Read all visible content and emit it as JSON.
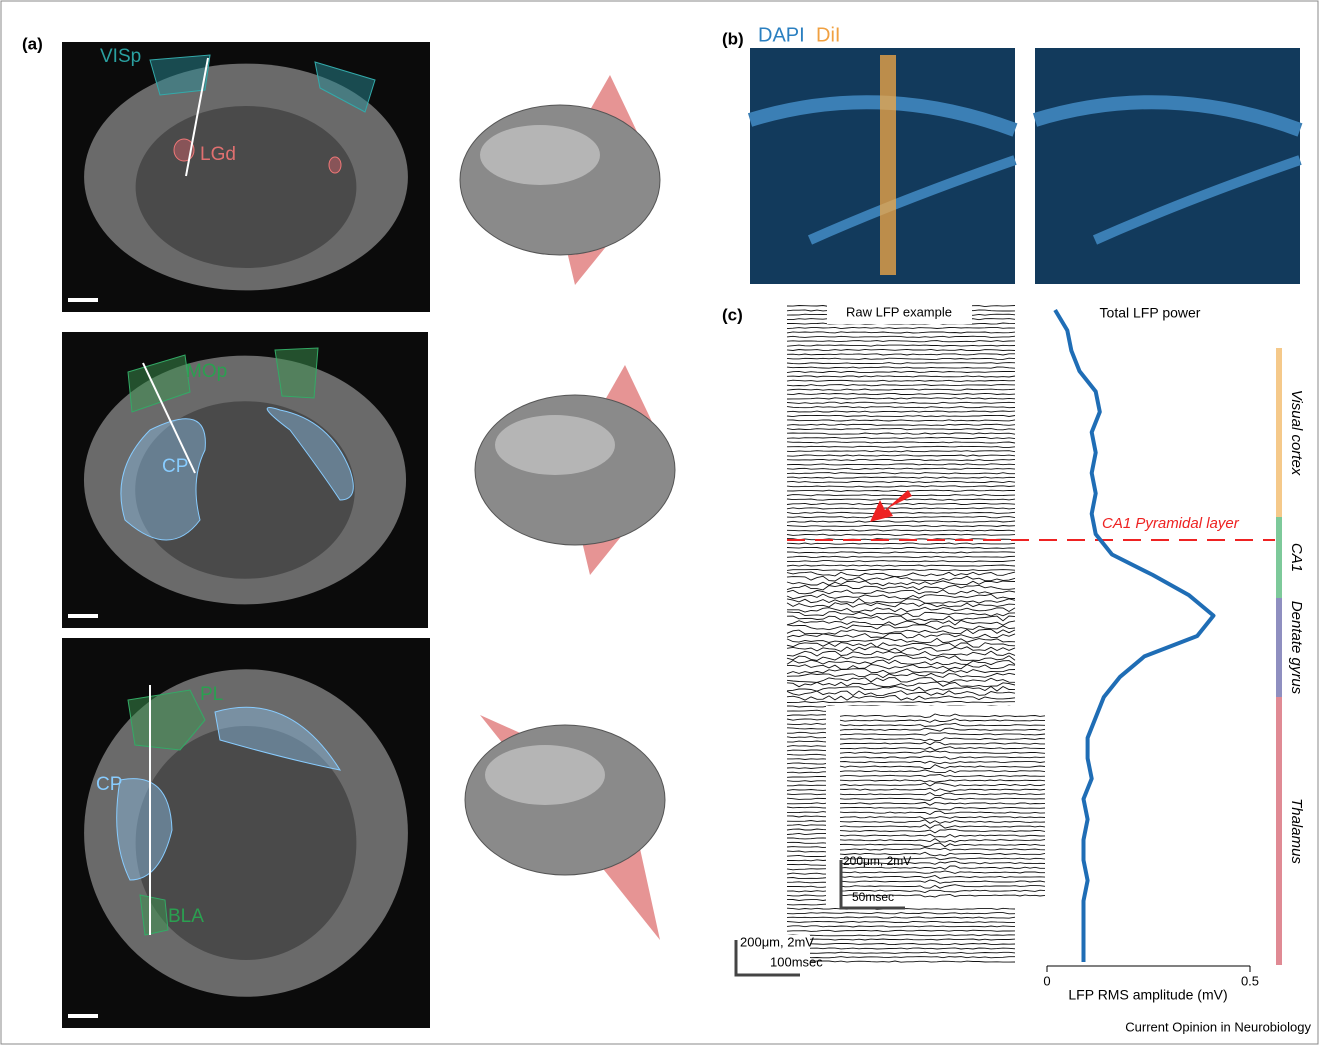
{
  "panel_a": {
    "label": "(a)",
    "regions": [
      "VISp",
      "LGd",
      "MOp",
      "CP",
      "PL",
      "CP",
      "BLA"
    ]
  },
  "panel_b": {
    "label": "(b)",
    "stain_1": "DAPI",
    "stain_2": "DiI"
  },
  "panel_c": {
    "label": "(c)",
    "raw_title": "Raw LFP example",
    "raw_scale": "200μm, 2mV",
    "raw_time": "100msec",
    "inset_scale": "200μm, 2mV",
    "inset_time": "50msec",
    "layer_label": "CA1 Pyramidal layer"
  },
  "chart_data": {
    "type": "line",
    "title": "Total LFP power",
    "x_label": "LFP RMS amplitude (mV)",
    "xlim": [
      0,
      0.5
    ],
    "xticks": [
      0,
      0.5
    ],
    "color": "#1f6db5",
    "values": [
      0.02,
      0.05,
      0.06,
      0.08,
      0.12,
      0.13,
      0.11,
      0.12,
      0.11,
      0.12,
      0.11,
      0.12,
      0.16,
      0.26,
      0.35,
      0.41,
      0.37,
      0.24,
      0.18,
      0.14,
      0.12,
      0.1,
      0.1,
      0.11,
      0.09,
      0.1,
      0.09,
      0.09,
      0.1,
      0.09,
      0.09,
      0.09,
      0.09
    ],
    "areas": [
      {
        "name": "Visual cortex",
        "color": "#f5c98a"
      },
      {
        "name": "CA1",
        "color": "#7dc99a"
      },
      {
        "name": "Dentate gyrus",
        "color": "#8f8fc0"
      },
      {
        "name": "Thalamus",
        "color": "#e08a94"
      }
    ]
  },
  "footer": "Current Opinion in Neurobiology"
}
